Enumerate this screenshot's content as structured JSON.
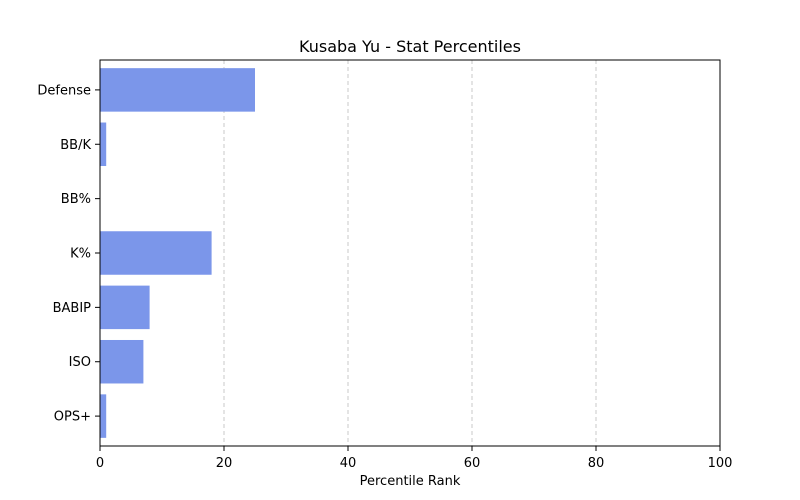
{
  "chart_data": {
    "type": "bar",
    "orientation": "horizontal",
    "title": "Kusaba Yu - Stat Percentiles",
    "xlabel": "Percentile Rank",
    "ylabel": "",
    "xlim": [
      0,
      100
    ],
    "xticks": [
      0,
      20,
      40,
      60,
      80,
      100
    ],
    "grid": "x-dashed",
    "bar_color": "#7b96ea",
    "categories": [
      "Defense",
      "BB/K",
      "BB%",
      "K%",
      "BABIP",
      "ISO",
      "OPS+"
    ],
    "values": [
      25,
      1,
      0,
      18,
      8,
      7,
      1
    ]
  }
}
